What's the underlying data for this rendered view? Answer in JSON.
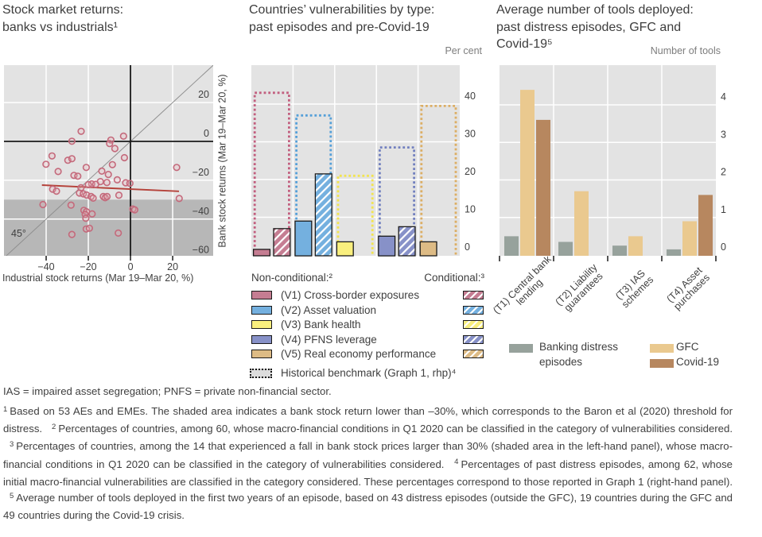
{
  "page": {
    "bg": "#ffffff",
    "text_color": "#3f3f3f",
    "muted_color": "#7d7d7d"
  },
  "panels": [
    {
      "title": "Stock market returns:\nbanks vs industrials¹"
    },
    {
      "title": "Countries’ vulnerabilities by type:\npast episodes and pre-Covid-19"
    },
    {
      "title": "Average number of tools deployed:\npast distress episodes, GFC and\nCovid-19⁵"
    }
  ],
  "chart_data": [
    {
      "type": "scatter",
      "title": "Stock market returns: banks vs industrials¹",
      "xlabel": "Industrial stock returns (Mar 19–Mar 20, %)",
      "ylabel": "Bank stock returns (Mar 19–Mar 20, %)",
      "xlim": [
        -60,
        39
      ],
      "ylim": [
        -59,
        39
      ],
      "x_ticks": [
        -40,
        -20,
        0,
        20
      ],
      "y_ticks": [
        20,
        0,
        -20,
        -40,
        -60
      ],
      "grid": true,
      "bg_color": "#e3e3e3",
      "shaded_below": -30,
      "shade_color": "#b7b7b7",
      "point_color": "#c4697b",
      "diagonal_label": "45°",
      "diagonal_line": "y = x",
      "trend_line": {
        "x1": -42,
        "y1": -22.5,
        "x2": 23,
        "y2": -25.7,
        "color": "#b5423a"
      },
      "points": [
        [
          -23.4,
          5.2
        ],
        [
          -27.8,
          0.1
        ],
        [
          -3.3,
          2.7
        ],
        [
          -9.3,
          0.7
        ],
        [
          -9.9,
          -1.1
        ],
        [
          -7.4,
          -3.7
        ],
        [
          -37.2,
          -7.5
        ],
        [
          -29.7,
          -9.7
        ],
        [
          -27.8,
          -8.9
        ],
        [
          -2.9,
          -8.4
        ],
        [
          -40.1,
          -11.8
        ],
        [
          -8.6,
          -12.0
        ],
        [
          -21.0,
          -13.4
        ],
        [
          21.9,
          -13.4
        ],
        [
          -34.3,
          -15.5
        ],
        [
          -13.6,
          -15.3
        ],
        [
          -26.8,
          -17.5
        ],
        [
          -25.0,
          -17.9
        ],
        [
          -10.5,
          -17.0
        ],
        [
          -6.3,
          -19.8
        ],
        [
          -14.3,
          -20.7
        ],
        [
          -11.2,
          -21.2
        ],
        [
          -2.3,
          -21.3
        ],
        [
          -18.4,
          -21.9
        ],
        [
          -16.5,
          -22.1
        ],
        [
          -20.0,
          -22.3
        ],
        [
          -0.3,
          -21.6
        ],
        [
          -36.9,
          -24.6
        ],
        [
          -35.1,
          -25.6
        ],
        [
          -23.5,
          -23.9
        ],
        [
          -24.2,
          -26.6
        ],
        [
          -22.4,
          -27.0
        ],
        [
          -20.8,
          -27.6
        ],
        [
          -18.7,
          -28.4
        ],
        [
          -17.7,
          -29.2
        ],
        [
          -12.9,
          -28.4
        ],
        [
          -12.0,
          -29.0
        ],
        [
          -11.1,
          -28.4
        ],
        [
          -5.5,
          -27.7
        ],
        [
          -41.5,
          -32.5
        ],
        [
          -28.2,
          -32.8
        ],
        [
          23.1,
          -29.4
        ],
        [
          1.1,
          -34.8
        ],
        [
          2.0,
          -35.2
        ],
        [
          -22.1,
          -35.5
        ],
        [
          -20.9,
          -36.2
        ],
        [
          -21.5,
          -37.6
        ],
        [
          -18.2,
          -37.3
        ],
        [
          -21.2,
          -39.6
        ],
        [
          -21.0,
          -45.1
        ],
        [
          -19.5,
          -44.7
        ],
        [
          -27.8,
          -47.9
        ],
        [
          -5.8,
          -47.2
        ]
      ]
    },
    {
      "type": "bar",
      "title": "Countries’ vulnerabilities by type: past episodes and pre-Covid-19",
      "unit_label": "Per cent",
      "ylim": [
        0,
        50
      ],
      "y_ticks": [
        0,
        10,
        20,
        30,
        40
      ],
      "grid": true,
      "bg_color": "#e3e3e3",
      "legend": {
        "left_header": "Non-conditional:²",
        "right_header": "Conditional:³",
        "benchmark_label": "Historical benchmark (Graph 1, rhp)⁴"
      },
      "groups": [
        {
          "id": "V1",
          "label": "(V1) Cross-border exposures",
          "color": "#c57d92",
          "outline_color": "#c25e7e",
          "non_conditional": 1.5,
          "conditional": 7,
          "benchmark": 43
        },
        {
          "id": "V2",
          "label": "(V2) Asset valuation",
          "color": "#74b0df",
          "outline_color": "#55a0d9",
          "non_conditional": 9,
          "conditional": 21.5,
          "benchmark": 37
        },
        {
          "id": "V3",
          "label": "(V3) Bank health",
          "color": "#f9ef7e",
          "outline_color": "#f2e44f",
          "non_conditional": 3.5,
          "conditional": 0,
          "benchmark": 21
        },
        {
          "id": "V4",
          "label": "(V4) PFNS leverage",
          "color": "#8791c8",
          "outline_color": "#7280bf",
          "non_conditional": 5,
          "conditional": 7.5,
          "benchmark": 28.5
        },
        {
          "id": "V5",
          "label": "(V5) Real economy performance",
          "color": "#ddbb85",
          "outline_color": "#dcae64",
          "non_conditional": 3.5,
          "conditional": 0,
          "benchmark": 39.5
        }
      ]
    },
    {
      "type": "bar",
      "title": "Average number of tools deployed: past distress episodes, GFC and Covid-19⁵",
      "unit_label": "Number of tools",
      "ylim": [
        0,
        5
      ],
      "y_ticks": [
        0,
        1,
        2,
        3,
        4
      ],
      "grid": true,
      "bg_color": "#e3e3e3",
      "categories": [
        "(T1) Central bank\nlending",
        "(T2) Liability\nguarantees",
        "(T3) IAS\nschemes",
        "(T4) Asset\npurchases"
      ],
      "series": [
        {
          "name": "Banking distress\nepisodes",
          "color": "#97a29c",
          "values": [
            0.5,
            0.35,
            0.25,
            0.15
          ]
        },
        {
          "name": "GFC",
          "color": "#eac98f",
          "values": [
            4.4,
            1.7,
            0.5,
            0.9
          ]
        },
        {
          "name": "Covid-19",
          "color": "#b7875f",
          "values": [
            3.6,
            0,
            0,
            1.6
          ]
        }
      ]
    }
  ],
  "footnotes": {
    "abbrev": "IAS = impaired asset segregation; PNFS = private non-financial sector.",
    "notes": [
      {
        "sup": "1",
        "text": "Based on 53 AEs and EMEs. The shaded area indicates a bank stock return lower than –30%, which corresponds to the Baron et al (2020) threshold for distress."
      },
      {
        "sup": "2",
        "text": "Percentages of countries, among 60, whose macro-financial conditions in Q1 2020 can be classified in the category of vulnerabilities considered."
      },
      {
        "sup": "3",
        "text": "Percentages of countries, among the 14 that experienced a fall in bank stock prices larger than 30% (shaded area in the left-hand panel), whose macro-financial conditions in Q1 2020 can be classified in the category of vulnerabilities considered."
      },
      {
        "sup": "4",
        "text": "Percentages of past distress episodes, among 62, whose initial macro-financial vulnerabilities are classified in the category considered. These percentages correspond to those reported in Graph 1 (right-hand panel)."
      },
      {
        "sup": "5",
        "text": "Average number of tools deployed in the first two years of an episode, based on 43 distress episodes (outside the GFC), 19 countries during the GFC and 49 countries during the Covid-19 crisis."
      }
    ]
  }
}
